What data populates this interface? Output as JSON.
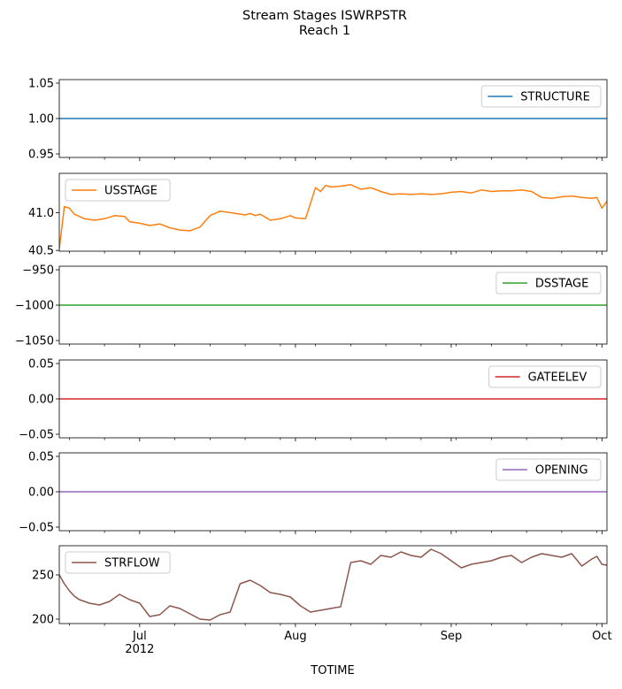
{
  "chart_data": {
    "type": "line",
    "title": "Stream Stages ISWRPSTR",
    "subtitle": "Reach 1",
    "xlabel": "TOTIME",
    "x_range": [
      "2012-06-15",
      "2012-10-02"
    ],
    "x_major_ticks": [
      {
        "date": "2012-07-01",
        "label": "Jul"
      },
      {
        "date": "2012-08-01",
        "label": "Aug"
      },
      {
        "date": "2012-09-01",
        "label": "Sep"
      },
      {
        "date": "2012-10-01",
        "label": "Oct"
      }
    ],
    "x_year_label": {
      "date": "2012-07-01",
      "label": "2012"
    },
    "x_minor_ticks": [
      "2012-06-17",
      "2012-06-24",
      "2012-07-08",
      "2012-07-15",
      "2012-07-22",
      "2012-07-29",
      "2012-08-05",
      "2012-08-12",
      "2012-08-19",
      "2012-08-26",
      "2012-09-02",
      "2012-09-09",
      "2012-09-16",
      "2012-09-23",
      "2012-09-30"
    ],
    "grid": false,
    "panels": [
      {
        "name": "STRUCTURE",
        "color": "#1f77b4",
        "legend": "top-right",
        "ylim": [
          0.945,
          1.055
        ],
        "yticks": [
          {
            "v": 0.95,
            "label": "0.95"
          },
          {
            "v": 1.0,
            "label": "1.00"
          },
          {
            "v": 1.05,
            "label": "1.05"
          }
        ],
        "x": [
          "2012-06-15",
          "2012-10-02"
        ],
        "y": [
          1.0,
          1.0
        ]
      },
      {
        "name": "USSTAGE",
        "color": "#ff7f0e",
        "legend": "top-left",
        "ylim": [
          40.49,
          41.52
        ],
        "yticks": [
          {
            "v": 40.5,
            "label": "40.5"
          },
          {
            "v": 41.0,
            "label": "41.0"
          }
        ],
        "x": [
          "2012-06-15",
          "2012-06-16",
          "2012-06-17",
          "2012-06-18",
          "2012-06-19",
          "2012-06-20",
          "2012-06-22",
          "2012-06-24",
          "2012-06-26",
          "2012-06-28",
          "2012-06-29",
          "2012-07-01",
          "2012-07-03",
          "2012-07-05",
          "2012-07-07",
          "2012-07-09",
          "2012-07-11",
          "2012-07-13",
          "2012-07-15",
          "2012-07-17",
          "2012-07-19",
          "2012-07-21",
          "2012-07-22",
          "2012-07-23",
          "2012-07-24",
          "2012-07-25",
          "2012-07-27",
          "2012-07-29",
          "2012-07-31",
          "2012-08-01",
          "2012-08-03",
          "2012-08-05",
          "2012-08-06",
          "2012-08-07",
          "2012-08-08",
          "2012-08-10",
          "2012-08-12",
          "2012-08-14",
          "2012-08-16",
          "2012-08-18",
          "2012-08-20",
          "2012-08-22",
          "2012-08-24",
          "2012-08-26",
          "2012-08-28",
          "2012-08-30",
          "2012-09-01",
          "2012-09-03",
          "2012-09-05",
          "2012-09-07",
          "2012-09-09",
          "2012-09-11",
          "2012-09-13",
          "2012-09-15",
          "2012-09-17",
          "2012-09-19",
          "2012-09-21",
          "2012-09-23",
          "2012-09-25",
          "2012-09-27",
          "2012-09-29",
          "2012-09-30",
          "2012-10-01",
          "2012-10-02"
        ],
        "y": [
          40.52,
          41.08,
          41.06,
          40.98,
          40.95,
          40.92,
          40.9,
          40.92,
          40.96,
          40.95,
          40.88,
          40.86,
          40.83,
          40.85,
          40.8,
          40.77,
          40.76,
          40.81,
          40.96,
          41.02,
          41.0,
          40.98,
          40.97,
          40.99,
          40.96,
          40.98,
          40.9,
          40.92,
          40.96,
          40.93,
          40.92,
          41.33,
          41.28,
          41.36,
          41.34,
          41.35,
          41.37,
          41.31,
          41.33,
          41.28,
          41.24,
          41.25,
          41.24,
          41.25,
          41.24,
          41.25,
          41.27,
          41.28,
          41.26,
          41.3,
          41.28,
          41.29,
          41.29,
          41.3,
          41.28,
          41.2,
          41.19,
          41.21,
          41.22,
          41.2,
          41.19,
          41.2,
          41.06,
          41.15
        ]
      },
      {
        "name": "DSSTAGE",
        "color": "#2ca02c",
        "legend": "top-right",
        "ylim": [
          -1055,
          -945
        ],
        "yticks": [
          {
            "v": -1050,
            "label": "−1050"
          },
          {
            "v": -1000,
            "label": "−1000"
          },
          {
            "v": -950,
            "label": "−950"
          }
        ],
        "x": [
          "2012-06-15",
          "2012-10-02"
        ],
        "y": [
          -1000,
          -1000
        ]
      },
      {
        "name": "GATEELEV",
        "color": "#d62728",
        "legend": "top-right",
        "ylim": [
          -0.055,
          0.055
        ],
        "yticks": [
          {
            "v": -0.05,
            "label": "−0.05"
          },
          {
            "v": 0.0,
            "label": "0.00"
          },
          {
            "v": 0.05,
            "label": "0.05"
          }
        ],
        "x": [
          "2012-06-15",
          "2012-10-02"
        ],
        "y": [
          0,
          0
        ]
      },
      {
        "name": "OPENING",
        "color": "#9467bd",
        "legend": "top-right",
        "ylim": [
          -0.055,
          0.055
        ],
        "yticks": [
          {
            "v": -0.05,
            "label": "−0.05"
          },
          {
            "v": 0.0,
            "label": "0.00"
          },
          {
            "v": 0.05,
            "label": "0.05"
          }
        ],
        "x": [
          "2012-06-15",
          "2012-10-02"
        ],
        "y": [
          0,
          0
        ]
      },
      {
        "name": "STRFLOW",
        "color": "#8c564b",
        "legend": "top-left",
        "ylim": [
          195,
          283
        ],
        "yticks": [
          {
            "v": 200,
            "label": "200"
          },
          {
            "v": 250,
            "label": "250"
          }
        ],
        "x": [
          "2012-06-15",
          "2012-06-16",
          "2012-06-17",
          "2012-06-18",
          "2012-06-19",
          "2012-06-21",
          "2012-06-23",
          "2012-06-25",
          "2012-06-27",
          "2012-06-29",
          "2012-07-01",
          "2012-07-03",
          "2012-07-05",
          "2012-07-07",
          "2012-07-09",
          "2012-07-11",
          "2012-07-13",
          "2012-07-15",
          "2012-07-17",
          "2012-07-19",
          "2012-07-21",
          "2012-07-23",
          "2012-07-25",
          "2012-07-27",
          "2012-07-29",
          "2012-07-31",
          "2012-08-02",
          "2012-08-04",
          "2012-08-06",
          "2012-08-08",
          "2012-08-10",
          "2012-08-12",
          "2012-08-14",
          "2012-08-16",
          "2012-08-18",
          "2012-08-20",
          "2012-08-22",
          "2012-08-24",
          "2012-08-26",
          "2012-08-28",
          "2012-08-30",
          "2012-09-01",
          "2012-09-03",
          "2012-09-05",
          "2012-09-07",
          "2012-09-09",
          "2012-09-11",
          "2012-09-13",
          "2012-09-15",
          "2012-09-17",
          "2012-09-19",
          "2012-09-21",
          "2012-09-23",
          "2012-09-25",
          "2012-09-27",
          "2012-09-29",
          "2012-09-30",
          "2012-10-01",
          "2012-10-02"
        ],
        "y": [
          250,
          240,
          232,
          226,
          222,
          218,
          216,
          220,
          228,
          222,
          218,
          203,
          205,
          215,
          212,
          206,
          200,
          199,
          205,
          208,
          240,
          244,
          238,
          230,
          228,
          225,
          215,
          208,
          210,
          212,
          214,
          264,
          266,
          262,
          272,
          270,
          276,
          272,
          270,
          279,
          274,
          266,
          258,
          262,
          264,
          266,
          270,
          272,
          264,
          270,
          274,
          272,
          270,
          274,
          260,
          268,
          271,
          262,
          261
        ]
      }
    ]
  }
}
